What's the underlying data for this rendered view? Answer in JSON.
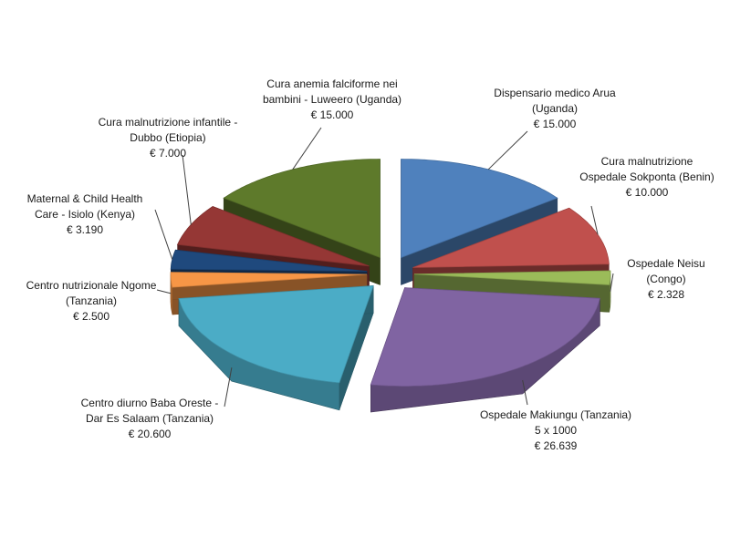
{
  "chart_data": {
    "type": "pie",
    "style": "3d-exploded",
    "title": "",
    "legend": "none",
    "slices": [
      {
        "key": "arua",
        "lines": [
          "Dispensario medico Arua",
          "(Uganda)",
          "€ 15.000"
        ],
        "value": 15000,
        "color": "#4f81bd"
      },
      {
        "key": "sokponta",
        "lines": [
          "Cura malnutrizione",
          "Ospedale Sokponta (Benin)",
          "€ 10.000"
        ],
        "value": 10000,
        "color": "#c0504d"
      },
      {
        "key": "neisu",
        "lines": [
          "Ospedale Neisu",
          "(Congo)",
          "€ 2.328"
        ],
        "value": 2328,
        "color": "#9bbb59"
      },
      {
        "key": "makiungu",
        "lines": [
          "Ospedale Makiungu (Tanzania)",
          "5 x 1000",
          "€ 26.639"
        ],
        "value": 26639,
        "color": "#8064a2"
      },
      {
        "key": "baba",
        "lines": [
          "Centro diurno Baba Oreste -",
          "Dar Es Salaam (Tanzania)",
          "€ 20.600"
        ],
        "value": 20600,
        "color": "#4bacc6"
      },
      {
        "key": "ngome",
        "lines": [
          "Centro nutrizionale Ngome",
          "(Tanzania)",
          "€ 2.500"
        ],
        "value": 2500,
        "color": "#f79646"
      },
      {
        "key": "isiolo",
        "lines": [
          "Maternal & Child Health",
          "Care - Isiolo (Kenya)",
          "€ 3.190"
        ],
        "value": 3190,
        "color": "#1f497d"
      },
      {
        "key": "dubbo",
        "lines": [
          "Cura malnutrizione infantile -",
          "Dubbo (Etiopia)",
          "€ 7.000"
        ],
        "value": 7000,
        "color": "#953735"
      },
      {
        "key": "luweero",
        "lines": [
          "Cura anemia falciforme nei",
          "bambini - Luweero (Uganda)",
          "€ 15.000"
        ],
        "value": 15000,
        "color": "#5e7a2b"
      }
    ]
  }
}
